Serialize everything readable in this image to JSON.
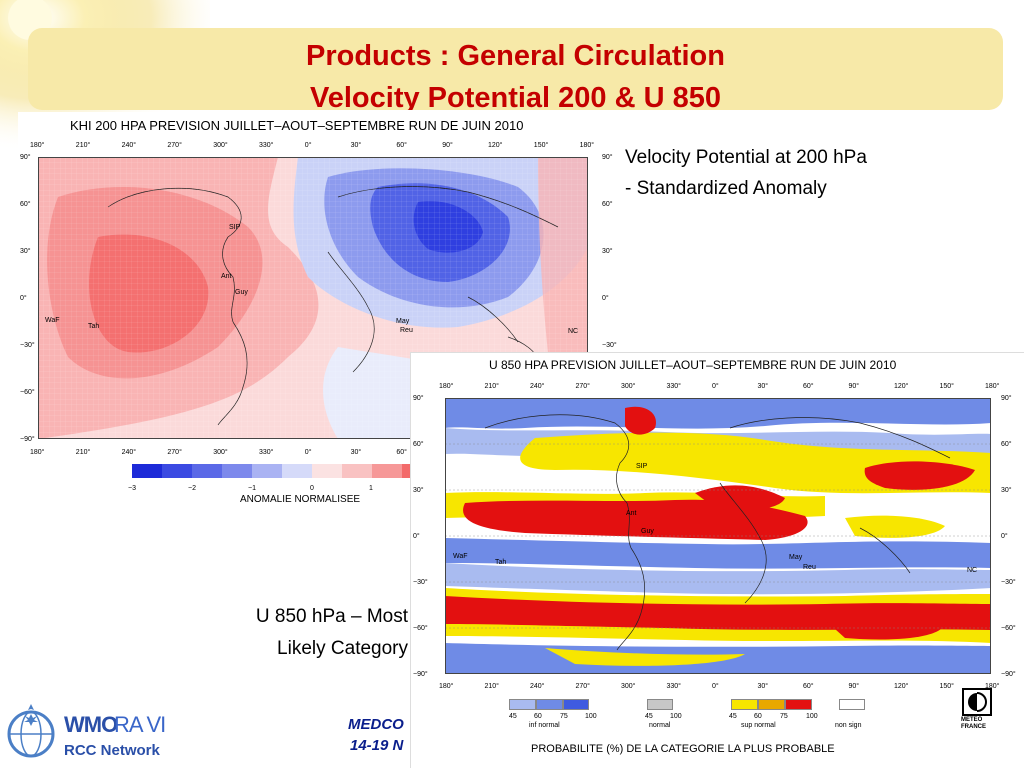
{
  "slide": {
    "title_line1": "Products : General Circulation",
    "title_line2": "Velocity Potential  200 & U 850"
  },
  "map1": {
    "title": "KHI 200 HPA PREVISION JUILLET–AOUT–SEPTEMBRE  RUN DE JUIN 2010",
    "lon_ticks": [
      "180°",
      "210°",
      "240°",
      "270°",
      "300°",
      "330°",
      "0°",
      "30°",
      "60°",
      "90°",
      "120°",
      "150°",
      "180°"
    ],
    "lat_ticks": [
      "90°",
      "60°",
      "30°",
      "0°",
      "−30°",
      "−60°",
      "−90°"
    ],
    "colorbar_ticks": [
      "−3",
      "−2",
      "−1",
      "0",
      "1"
    ],
    "colorbar_label": "ANOMALIE NORMALISEE",
    "station_labels": {
      "sip": "SIP",
      "ant": "Ant",
      "guy": "Guy",
      "waf": "WaF",
      "tah": "Tah",
      "may": "May",
      "reu": "Reu",
      "nc": "NC"
    }
  },
  "map2": {
    "title": "U 850 HPA PREVISION JUILLET–AOUT–SEPTEMBRE  RUN DE JUIN 2010",
    "lon_ticks": [
      "180°",
      "210°",
      "240°",
      "270°",
      "300°",
      "330°",
      "0°",
      "30°",
      "60°",
      "90°",
      "120°",
      "150°",
      "180°"
    ],
    "lat_ticks": [
      "90°",
      "60°",
      "30°",
      "0°",
      "−30°",
      "−60°",
      "−90°"
    ],
    "station_labels": {
      "sip": "SIP",
      "ant": "Ant",
      "guy": "Guy",
      "waf": "WaF",
      "tah": "Tah",
      "may": "May",
      "reu": "Reu",
      "nc": "NC"
    },
    "legend": {
      "inf_normal": {
        "ticks": [
          "45",
          "60",
          "75",
          "100"
        ],
        "label": "inf normal"
      },
      "normal": {
        "ticks": [
          "45",
          "100"
        ],
        "label": "normal"
      },
      "sup_normal": {
        "ticks": [
          "45",
          "60",
          "75",
          "100"
        ],
        "label": "sup normal"
      },
      "non_sign": {
        "label": "non sign"
      },
      "footer": "PROBABILITE (%) DE LA CATEGORIE LA PLUS PROBABLE"
    }
  },
  "captions": {
    "vp_line1": "Velocity Potential at 200 hPa",
    "vp_line2": "- Standardized Anomaly",
    "u_line1": "U 850 hPa – Most",
    "u_line2": "Likely Category"
  },
  "footer": {
    "wmo_text1": "WMO",
    "wmo_text2": "RA VI",
    "rcc_text": "RCC Network",
    "event_line1": "MEDCO",
    "event_line2": "14-19 N",
    "meteo_line1": "METEO",
    "meteo_line2": "FRANCE"
  },
  "colors": {
    "title_red": "#c40000",
    "title_band": "#f7e9a8",
    "anomaly_blue": "#2f3fe0",
    "anomaly_red": "#f36a6a",
    "prob_red": "#e31010",
    "prob_yellow": "#f7e600",
    "prob_blue": "#6f8be6"
  }
}
